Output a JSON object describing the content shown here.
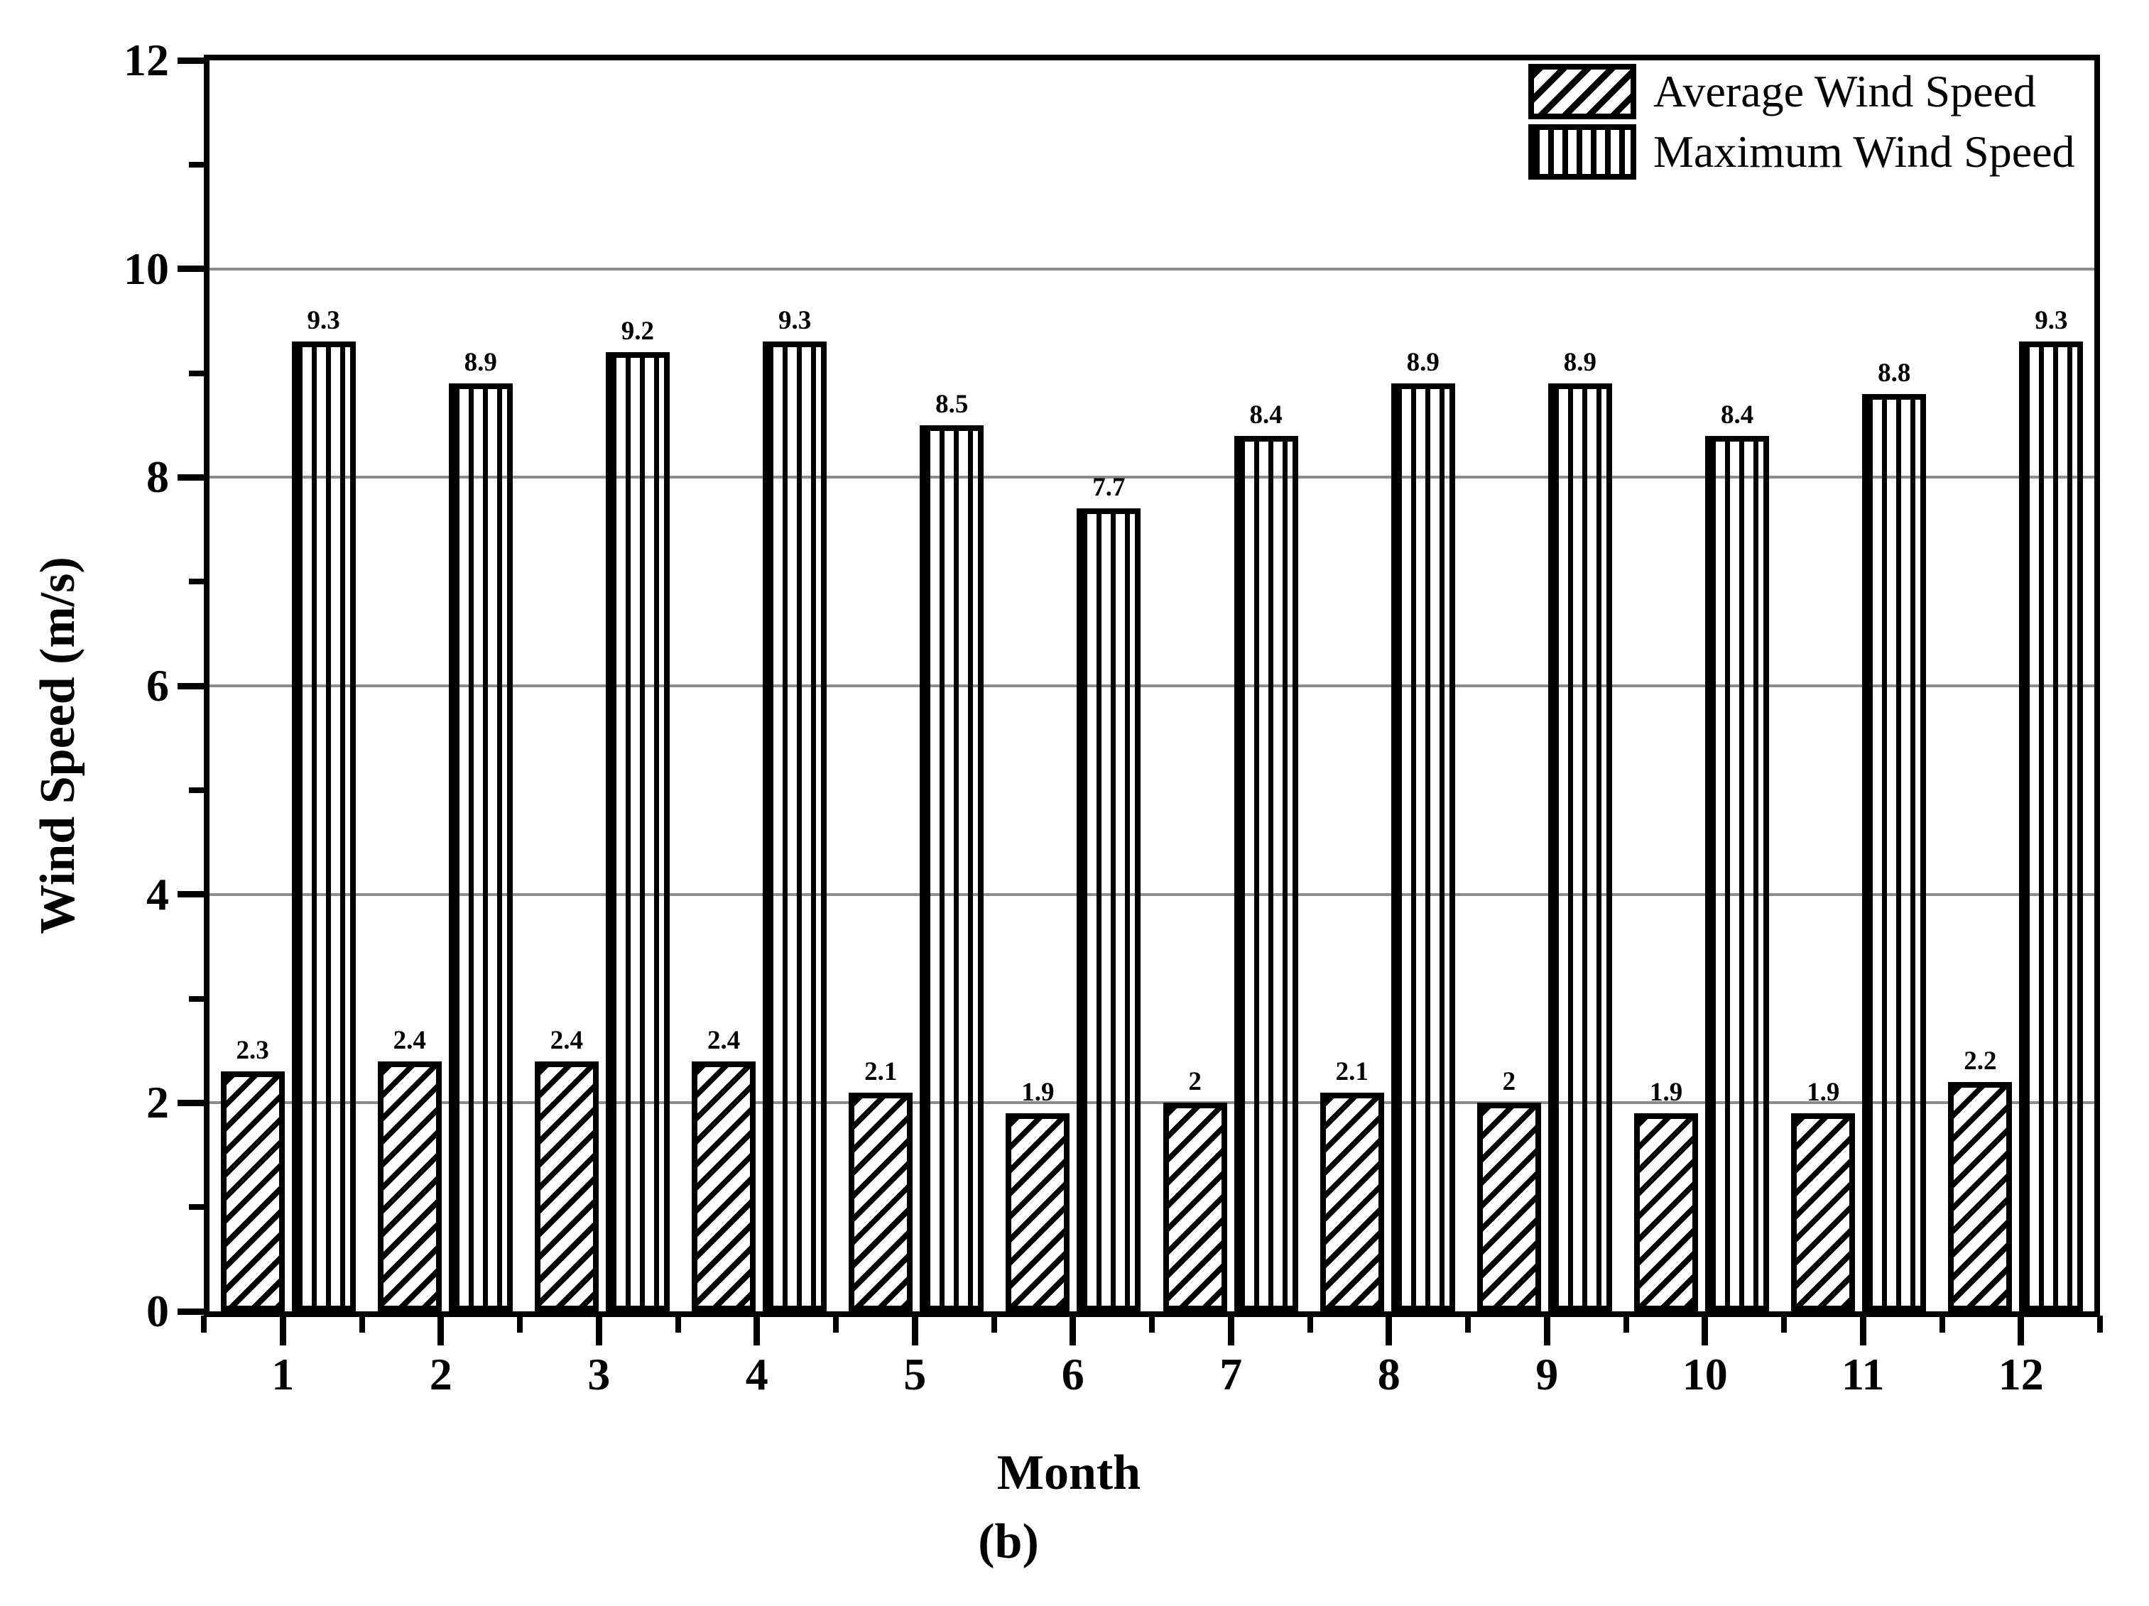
{
  "chart_data": {
    "type": "bar",
    "categories": [
      "1",
      "2",
      "3",
      "4",
      "5",
      "6",
      "7",
      "8",
      "9",
      "10",
      "11",
      "12"
    ],
    "series": [
      {
        "name": "Average Wind Speed",
        "pattern": "diagonal-hatch",
        "values": [
          2.3,
          2.4,
          2.4,
          2.4,
          2.1,
          1.9,
          2,
          2.1,
          2,
          1.9,
          1.9,
          2.2
        ]
      },
      {
        "name": "Maximum Wind Speed",
        "pattern": "vertical-lines",
        "values": [
          9.3,
          8.9,
          9.2,
          9.3,
          8.5,
          7.7,
          8.4,
          8.9,
          8.9,
          8.4,
          8.8,
          9.3
        ]
      }
    ],
    "title": "",
    "xlabel": "Month",
    "ylabel": "Wind Speed (m/s)",
    "ylim": [
      0,
      12
    ],
    "y_major_ticks": [
      0,
      2,
      4,
      6,
      8,
      10,
      12
    ],
    "y_minor_ticks": [
      1,
      3,
      5,
      7,
      9,
      11
    ],
    "gridlines_at": [
      2,
      4,
      6,
      8,
      10
    ],
    "grid": "horizontal-major-only",
    "legend_position": "top-right-inside",
    "bar_value_labels": true,
    "caption": "(b)"
  },
  "colors": {
    "foreground": "#000000",
    "background": "#ffffff",
    "gridline": "#8c8c8c"
  }
}
